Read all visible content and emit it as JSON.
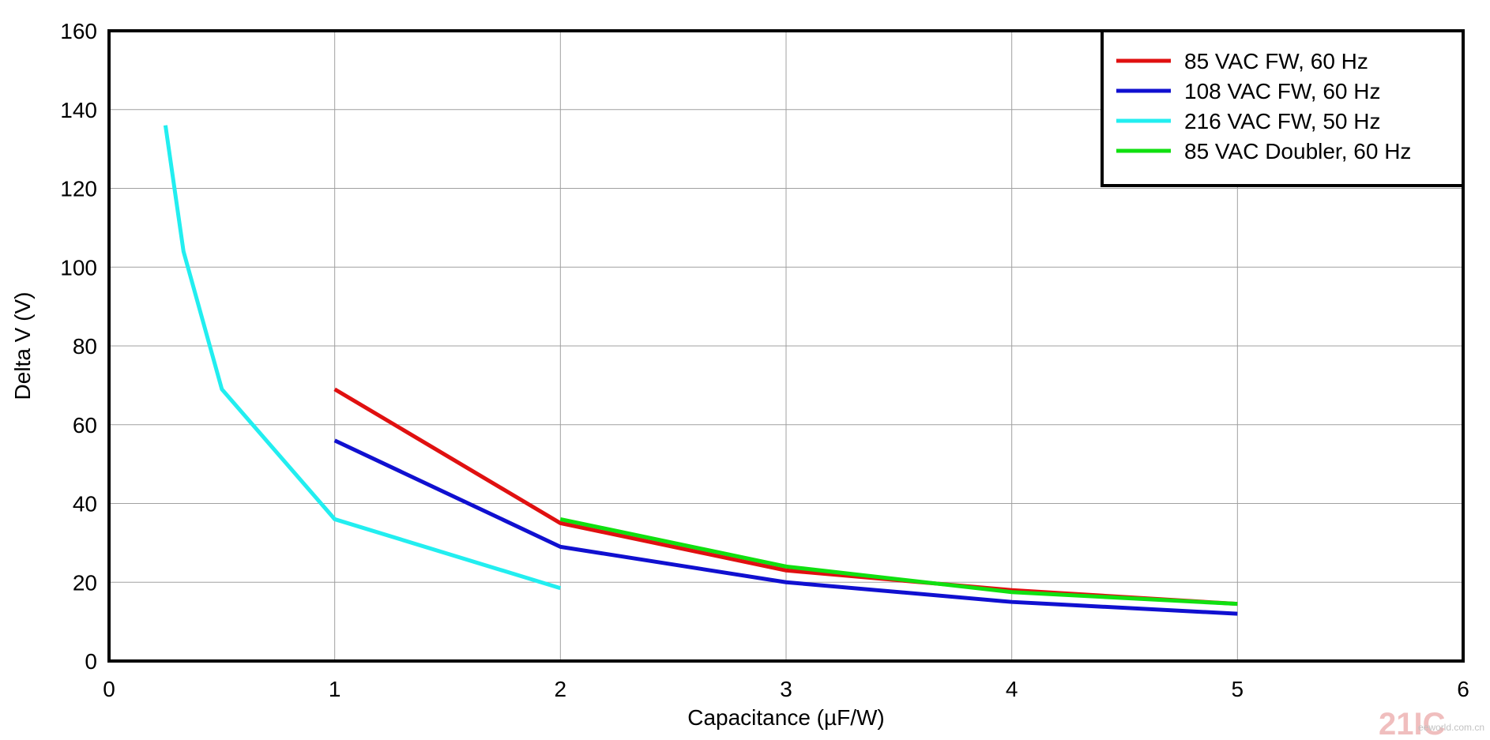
{
  "chart_data": {
    "type": "line",
    "title": "",
    "xlabel": "Capacitance (µF/W)",
    "ylabel": "Delta V (V)",
    "xlim": [
      0,
      6
    ],
    "ylim": [
      0,
      160
    ],
    "xticks": [
      "0",
      "1",
      "2",
      "3",
      "4",
      "5",
      "6"
    ],
    "yticks": [
      "0",
      "20",
      "40",
      "60",
      "80",
      "100",
      "120",
      "140",
      "160"
    ],
    "grid": true,
    "legend_position": "top-right",
    "series": [
      {
        "name": "85 VAC FW, 60 Hz",
        "color": "#e01010",
        "x": [
          1,
          2,
          3,
          4,
          5
        ],
        "y": [
          69,
          35,
          23,
          18,
          14.5
        ]
      },
      {
        "name": "108 VAC FW, 60 Hz",
        "color": "#1010d0",
        "x": [
          1,
          2,
          3,
          4,
          5
        ],
        "y": [
          56,
          29,
          20,
          15,
          12
        ]
      },
      {
        "name": "216 VAC FW, 50 Hz",
        "color": "#22eef0",
        "x": [
          0.25,
          0.33,
          0.5,
          1,
          2
        ],
        "y": [
          136,
          104,
          69,
          36,
          18.5
        ]
      },
      {
        "name": "85 VAC Doubler, 60 Hz",
        "color": "#10e010",
        "x": [
          2,
          3,
          4,
          5
        ],
        "y": [
          36,
          24,
          17.5,
          14.5
        ]
      }
    ]
  },
  "watermark": "21IC eeworld.com.cn"
}
